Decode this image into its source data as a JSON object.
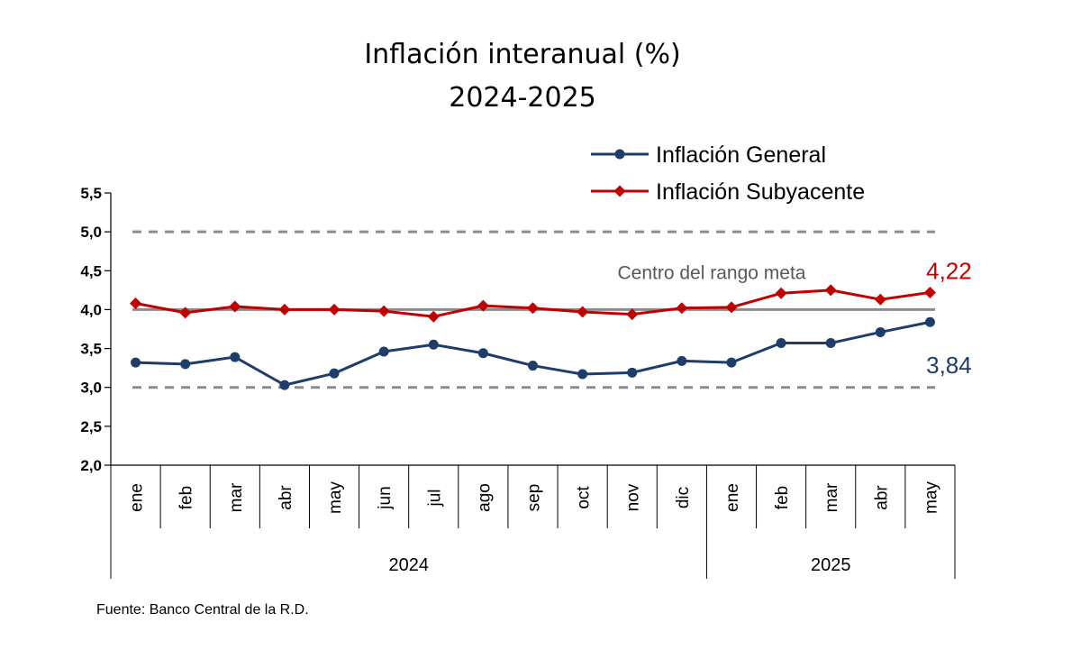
{
  "chart_data": {
    "type": "line",
    "title": "Inflación interanual (%)",
    "subtitle": "2024-2025",
    "categories": [
      "ene",
      "feb",
      "mar",
      "abr",
      "may",
      "jun",
      "jul",
      "ago",
      "sep",
      "oct",
      "nov",
      "dic",
      "ene",
      "feb",
      "mar",
      "abr",
      "may"
    ],
    "year_groups": [
      {
        "label": "2024",
        "count": 12
      },
      {
        "label": "2025",
        "count": 5
      }
    ],
    "yticks": [
      "2,0",
      "2,5",
      "3,0",
      "3,5",
      "4,0",
      "4,5",
      "5,0",
      "5,5"
    ],
    "ylim": [
      2.0,
      5.5
    ],
    "series": [
      {
        "name": "Inflación General",
        "color": "#1f3d6b",
        "marker": "circle",
        "values": [
          3.32,
          3.3,
          3.39,
          3.03,
          3.18,
          3.46,
          3.55,
          3.44,
          3.28,
          3.17,
          3.19,
          3.34,
          3.32,
          3.57,
          3.57,
          3.71,
          3.84
        ],
        "end_label": "3,84"
      },
      {
        "name": "Inflación Subyacente",
        "color": "#c00000",
        "marker": "diamond",
        "values": [
          4.08,
          3.96,
          4.04,
          4.0,
          4.0,
          3.98,
          3.91,
          4.05,
          4.02,
          3.97,
          3.94,
          4.02,
          4.03,
          4.21,
          4.25,
          4.13,
          4.22
        ],
        "end_label": "4,22"
      }
    ],
    "reference_lines": [
      {
        "value": 4.0,
        "style": "solid",
        "color": "#8c8c8c",
        "label": "Centro del rango meta"
      },
      {
        "value": 5.0,
        "style": "dashed",
        "color": "#8c8c8c"
      },
      {
        "value": 3.0,
        "style": "dashed",
        "color": "#8c8c8c"
      }
    ],
    "legend_position": "top-right",
    "grid": false
  },
  "source": "Fuente: Banco Central de la R.D."
}
